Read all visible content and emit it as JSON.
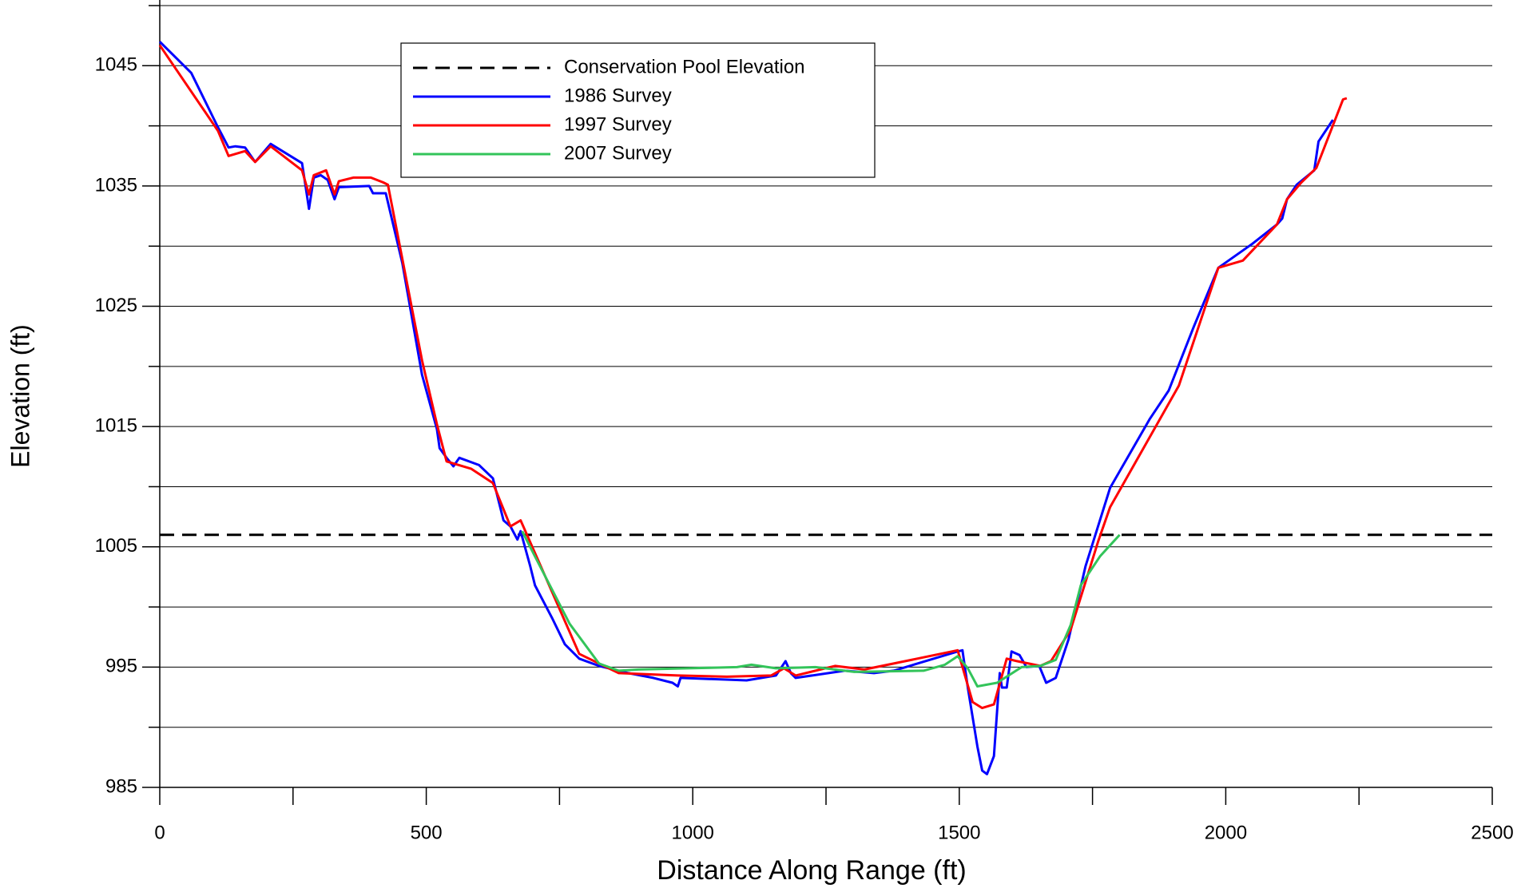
{
  "chart_data": {
    "type": "line",
    "xlabel": "Distance Along Range (ft)",
    "ylabel": "Elevation (ft)",
    "xlim": [
      0,
      2500
    ],
    "xticks": [
      0,
      500,
      1000,
      1500,
      2000,
      2500
    ],
    "x_minor_ticks": [
      250,
      750,
      1250,
      1750,
      2250
    ],
    "ylim": [
      985,
      1050
    ],
    "yticks": [
      985,
      995,
      1005,
      1015,
      1025,
      1035,
      1045
    ],
    "y_minor_ticks": [
      990,
      1000,
      1010,
      1020,
      1030,
      1040,
      1050
    ],
    "grid": true,
    "legend": "upper left",
    "series": [
      {
        "name": "Conservation Pool Elevation",
        "color": "#000000",
        "dashed": true,
        "x": [
          0,
          2500
        ],
        "values": [
          1006.0,
          1006.0
        ]
      },
      {
        "name": "1986 Survey",
        "color": "#0000ff",
        "x": [
          0,
          59,
          109,
          129,
          142,
          160,
          179,
          208,
          267,
          280,
          289,
          302,
          315,
          328,
          336,
          393,
          400,
          424,
          455,
          492,
          520,
          525,
          538,
          551,
          562,
          599,
          625,
          645,
          658,
          671,
          677,
          695,
          704,
          737,
          760,
          787,
          824,
          879,
          926,
          962,
          972,
          977,
          1101,
          1156,
          1174,
          1184,
          1193,
          1285,
          1340,
          1377,
          1497,
          1506,
          1516,
          1534,
          1543,
          1552,
          1565,
          1576,
          1580,
          1589,
          1598,
          1613,
          1626,
          1650,
          1663,
          1681,
          1705,
          1737,
          1783,
          1857,
          1893,
          1940,
          1986,
          2050,
          2096,
          2106,
          2115,
          2133,
          2166,
          2174,
          2201
        ],
        "values": [
          1047.0,
          1044.4,
          1039.9,
          1038.2,
          1038.3,
          1038.2,
          1037.0,
          1038.5,
          1036.9,
          1033.1,
          1035.7,
          1035.9,
          1035.5,
          1033.9,
          1034.9,
          1035.0,
          1034.4,
          1034.4,
          1028.6,
          1019.3,
          1014.8,
          1013.2,
          1012.4,
          1011.7,
          1012.4,
          1011.8,
          1010.7,
          1007.2,
          1006.7,
          1005.6,
          1006.3,
          1003.4,
          1001.8,
          999.0,
          996.9,
          995.7,
          995.1,
          994.5,
          994.1,
          993.7,
          993.4,
          994.1,
          993.9,
          994.3,
          995.5,
          994.5,
          994.1,
          994.7,
          994.5,
          994.7,
          996.3,
          996.4,
          993.3,
          988.4,
          986.4,
          986.1,
          987.6,
          994.5,
          993.3,
          993.3,
          996.3,
          996.0,
          995.0,
          995.1,
          993.7,
          994.1,
          997.3,
          1003.4,
          1009.9,
          1015.6,
          1018.0,
          1023.3,
          1028.2,
          1030.2,
          1031.8,
          1032.3,
          1033.9,
          1035.1,
          1036.3,
          1038.7,
          1040.5
        ]
      },
      {
        "name": "1997 Survey",
        "color": "#ff0000",
        "x": [
          0,
          109,
          129,
          160,
          179,
          208,
          267,
          280,
          289,
          312,
          328,
          336,
          363,
          396,
          419,
          428,
          492,
          520,
          538,
          584,
          625,
          658,
          677,
          686,
          787,
          861,
          972,
          1064,
          1147,
          1171,
          1193,
          1267,
          1322,
          1377,
          1497,
          1525,
          1543,
          1565,
          1589,
          1608,
          1652,
          1672,
          1709,
          1761,
          1783,
          1912,
          1986,
          2032,
          2096,
          2115,
          2142,
          2170,
          2220,
          2227
        ],
        "values": [
          1046.7,
          1039.6,
          1037.5,
          1037.9,
          1037.0,
          1038.3,
          1036.3,
          1034.3,
          1035.9,
          1036.3,
          1034.3,
          1035.4,
          1035.7,
          1035.7,
          1035.3,
          1035.1,
          1020.5,
          1015.2,
          1012.1,
          1011.5,
          1010.3,
          1006.7,
          1007.2,
          1006.3,
          996.1,
          994.5,
          994.3,
          994.2,
          994.3,
          994.9,
          994.3,
          995.1,
          994.8,
          995.3,
          996.4,
          992.1,
          991.6,
          991.9,
          995.7,
          995.5,
          995.1,
          995.5,
          998.1,
          1005.5,
          1008.3,
          1018.4,
          1028.2,
          1028.8,
          1031.8,
          1033.9,
          1035.3,
          1036.5,
          1042.2,
          1042.3
        ]
      },
      {
        "name": "2007 Survey",
        "color": "#33c45a",
        "x": [
          680,
          704,
          769,
          824,
          861,
          898,
          990,
          1083,
          1110,
          1156,
          1230,
          1303,
          1433,
          1473,
          1497,
          1516,
          1534,
          1571,
          1617,
          1652,
          1681,
          1709,
          1728,
          1764,
          1801
        ],
        "values": [
          1006.3,
          1004.2,
          998.6,
          995.3,
          994.7,
          994.8,
          994.9,
          995.0,
          995.2,
          994.9,
          995.0,
          994.6,
          994.7,
          995.2,
          995.9,
          994.9,
          993.4,
          993.7,
          995.0,
          995.1,
          995.6,
          998.5,
          1001.8,
          1004.2,
          1006.0
        ]
      }
    ]
  }
}
